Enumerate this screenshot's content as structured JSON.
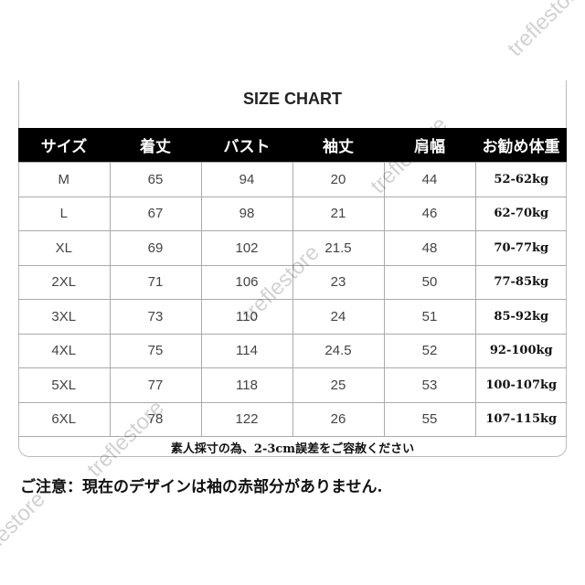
{
  "title": "SIZE CHART",
  "headers": [
    "サイズ",
    "着丈",
    "バスト",
    "袖丈",
    "肩幅",
    "お勧め体重"
  ],
  "rows": [
    [
      "M",
      "65",
      "94",
      "20",
      "44",
      "52-62kg"
    ],
    [
      "L",
      "67",
      "98",
      "21",
      "46",
      "62-70kg"
    ],
    [
      "XL",
      "69",
      "102",
      "21.5",
      "48",
      "70-77kg"
    ],
    [
      "2XL",
      "71",
      "106",
      "23",
      "50",
      "77-85kg"
    ],
    [
      "3XL",
      "73",
      "110",
      "24",
      "51",
      "85-92kg"
    ],
    [
      "4XL",
      "75",
      "114",
      "24.5",
      "52",
      "92-100kg"
    ],
    [
      "5XL",
      "77",
      "118",
      "25",
      "53",
      "100-107kg"
    ],
    [
      "6XL",
      "78",
      "122",
      "26",
      "55",
      "107-115kg"
    ]
  ],
  "note_tolerance": "素人採寸の為、2-3cm誤差をご容赦ください",
  "note_caution": "ご注意：現在のデザインは袖の赤部分がありません.",
  "watermark": "treflestore"
}
